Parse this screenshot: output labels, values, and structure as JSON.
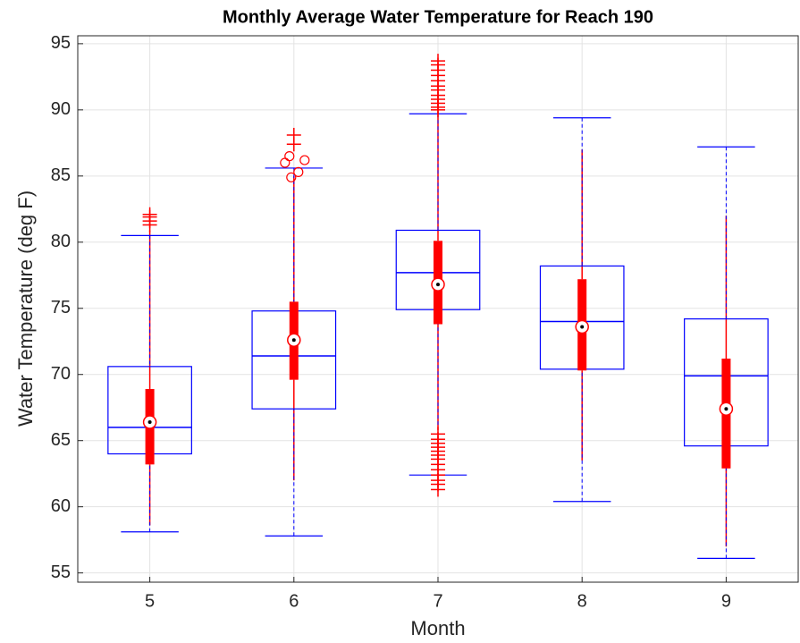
{
  "chart_data": {
    "type": "box",
    "title": "Monthly Average Water Temperature for Reach 190",
    "x_label": "Month",
    "y_label": "Water Temperature (deg F)",
    "categories": [
      "5",
      "6",
      "7",
      "8",
      "9"
    ],
    "ylim": [
      54.3,
      95.6
    ],
    "yticks": [
      55,
      60,
      65,
      70,
      75,
      80,
      85,
      90,
      95
    ],
    "grid": true,
    "series": [
      {
        "color": "#0000ff",
        "style": "standard",
        "whisker_low": [
          58.1,
          57.8,
          62.4,
          60.4,
          56.1
        ],
        "q1": [
          64.0,
          67.4,
          74.9,
          70.4,
          64.6
        ],
        "median": [
          66.0,
          71.4,
          77.7,
          74.0,
          69.9
        ],
        "q3": [
          70.6,
          74.8,
          80.9,
          78.2,
          74.2
        ],
        "whisker_high": [
          80.5,
          85.6,
          89.7,
          89.4,
          87.2
        ]
      },
      {
        "color": "#ff0000",
        "style": "compact",
        "whisker_low": [
          58.6,
          62.0,
          65.8,
          63.5,
          57.0
        ],
        "q1": [
          63.2,
          69.6,
          73.8,
          70.3,
          62.9
        ],
        "median": [
          66.4,
          72.6,
          76.8,
          73.6,
          67.4
        ],
        "q3": [
          68.9,
          75.5,
          80.1,
          77.2,
          71.2
        ],
        "whisker_high": [
          80.9,
          85.0,
          89.9,
          87.0,
          82.0
        ],
        "outliers": [
          [
            81.3,
            81.6,
            81.9,
            82.1
          ],
          [
            87.4,
            88.1
          ],
          [
            90.0,
            90.2,
            90.5,
            90.8,
            91.1,
            91.5,
            91.8,
            92.2,
            92.6,
            93.0,
            93.4,
            93.7,
            65.5,
            65.1,
            64.8,
            64.5,
            64.2,
            63.9,
            63.6,
            63.2,
            62.8,
            62.4,
            62.0,
            61.7,
            61.3
          ],
          [],
          []
        ],
        "outlier_circles": [
          [],
          [
            86.0,
            86.5,
            84.9,
            85.3,
            86.2
          ],
          [],
          [],
          []
        ]
      }
    ]
  }
}
